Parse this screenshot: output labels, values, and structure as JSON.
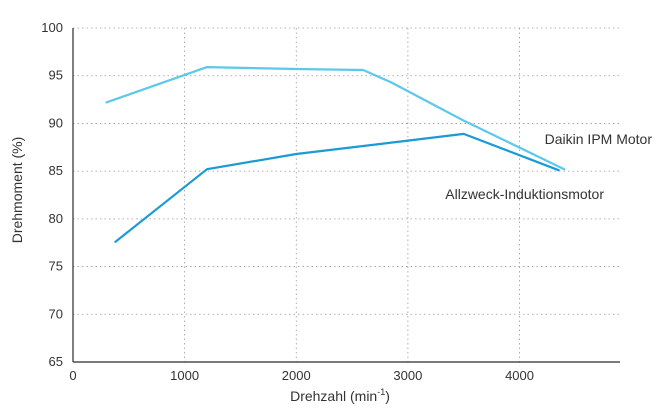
{
  "chart_data": {
    "type": "line",
    "xlabel": "Drehzahl (min",
    "xlabel_sup": "-1",
    "xlabel_close": ")",
    "ylabel": "Drehmoment (%)",
    "xlim": [
      0,
      4900
    ],
    "ylim": [
      65,
      100
    ],
    "x_ticks": [
      0,
      1000,
      2000,
      3000,
      4000
    ],
    "y_ticks": [
      65,
      70,
      75,
      80,
      85,
      90,
      95,
      100
    ],
    "grid": true,
    "series": [
      {
        "name": "Daikin IPM Motor",
        "color": "#5ec8ec",
        "x": [
          300,
          1200,
          2000,
          2600,
          2850,
          3500,
          4400
        ],
        "y": [
          92.2,
          95.9,
          95.7,
          95.6,
          94.3,
          90.3,
          85.2
        ]
      },
      {
        "name": "Allzweck-Induktionsmotor",
        "color": "#1a9ad6",
        "x": [
          380,
          1200,
          2000,
          3000,
          3500,
          4350
        ],
        "y": [
          77.6,
          85.2,
          86.8,
          88.2,
          88.9,
          85.1
        ]
      }
    ]
  }
}
